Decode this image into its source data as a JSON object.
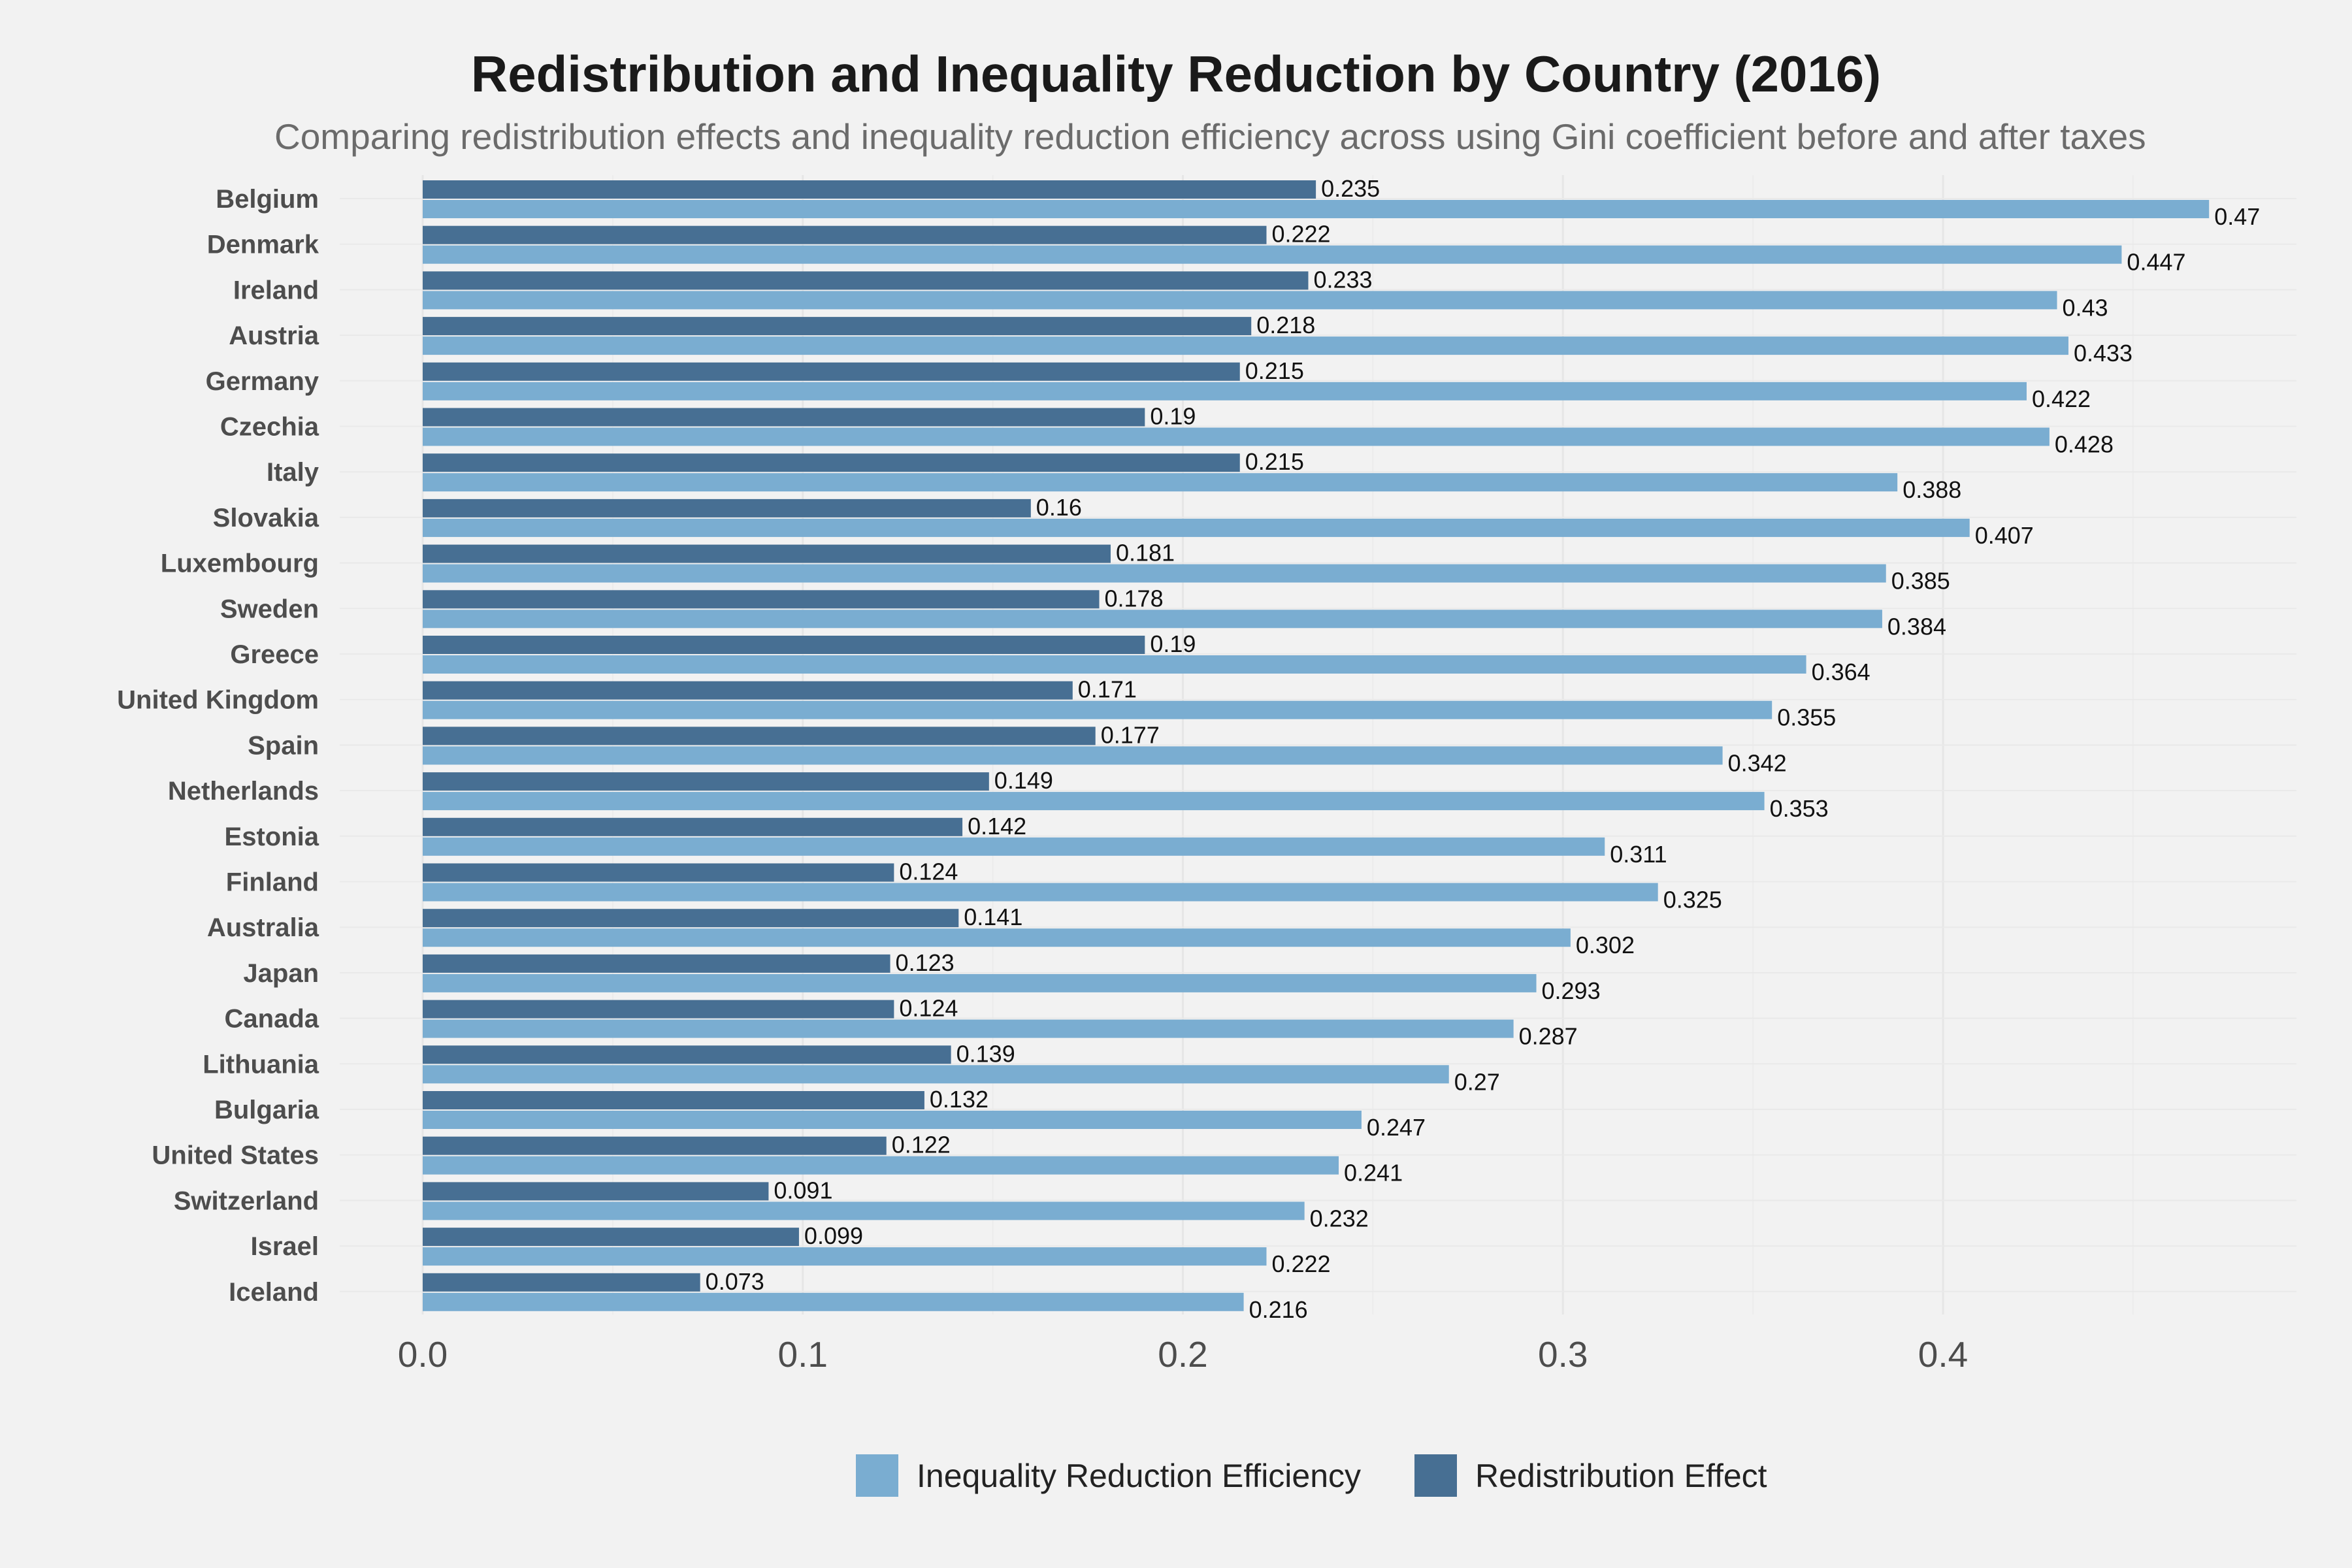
{
  "chart_data": {
    "type": "bar",
    "orientation": "horizontal",
    "title": "Redistribution and Inequality Reduction by Country (2016)",
    "subtitle": "Comparing redistribution effects and inequality reduction efficiency across using Gini coefficient before and after taxes",
    "xlabel": "",
    "ylabel": "",
    "xlim": [
      0,
      0.49
    ],
    "xticks": [
      "0.0",
      "0.1",
      "0.2",
      "0.3",
      "0.4"
    ],
    "xtick_values": [
      0,
      0.1,
      0.2,
      0.3,
      0.4
    ],
    "grid": true,
    "legend_position": "bottom",
    "categories": [
      "Belgium",
      "Denmark",
      "Ireland",
      "Austria",
      "Germany",
      "Czechia",
      "Italy",
      "Slovakia",
      "Luxembourg",
      "Sweden",
      "Greece",
      "United Kingdom",
      "Spain",
      "Netherlands",
      "Estonia",
      "Finland",
      "Australia",
      "Japan",
      "Canada",
      "Lithuania",
      "Bulgaria",
      "United States",
      "Switzerland",
      "Israel",
      "Iceland"
    ],
    "series": [
      {
        "name": "Inequality Reduction Efficiency",
        "color": "#7aadd1",
        "values": [
          0.47,
          0.447,
          0.43,
          0.433,
          0.422,
          0.428,
          0.388,
          0.407,
          0.385,
          0.384,
          0.364,
          0.355,
          0.342,
          0.353,
          0.311,
          0.325,
          0.302,
          0.293,
          0.287,
          0.27,
          0.247,
          0.241,
          0.232,
          0.222,
          0.216
        ]
      },
      {
        "name": "Redistribution Effect",
        "color": "#476f93",
        "values": [
          0.235,
          0.222,
          0.233,
          0.218,
          0.215,
          0.19,
          0.215,
          0.16,
          0.181,
          0.178,
          0.19,
          0.171,
          0.177,
          0.149,
          0.142,
          0.124,
          0.141,
          0.123,
          0.124,
          0.139,
          0.132,
          0.122,
          0.091,
          0.099,
          0.073
        ]
      }
    ]
  }
}
